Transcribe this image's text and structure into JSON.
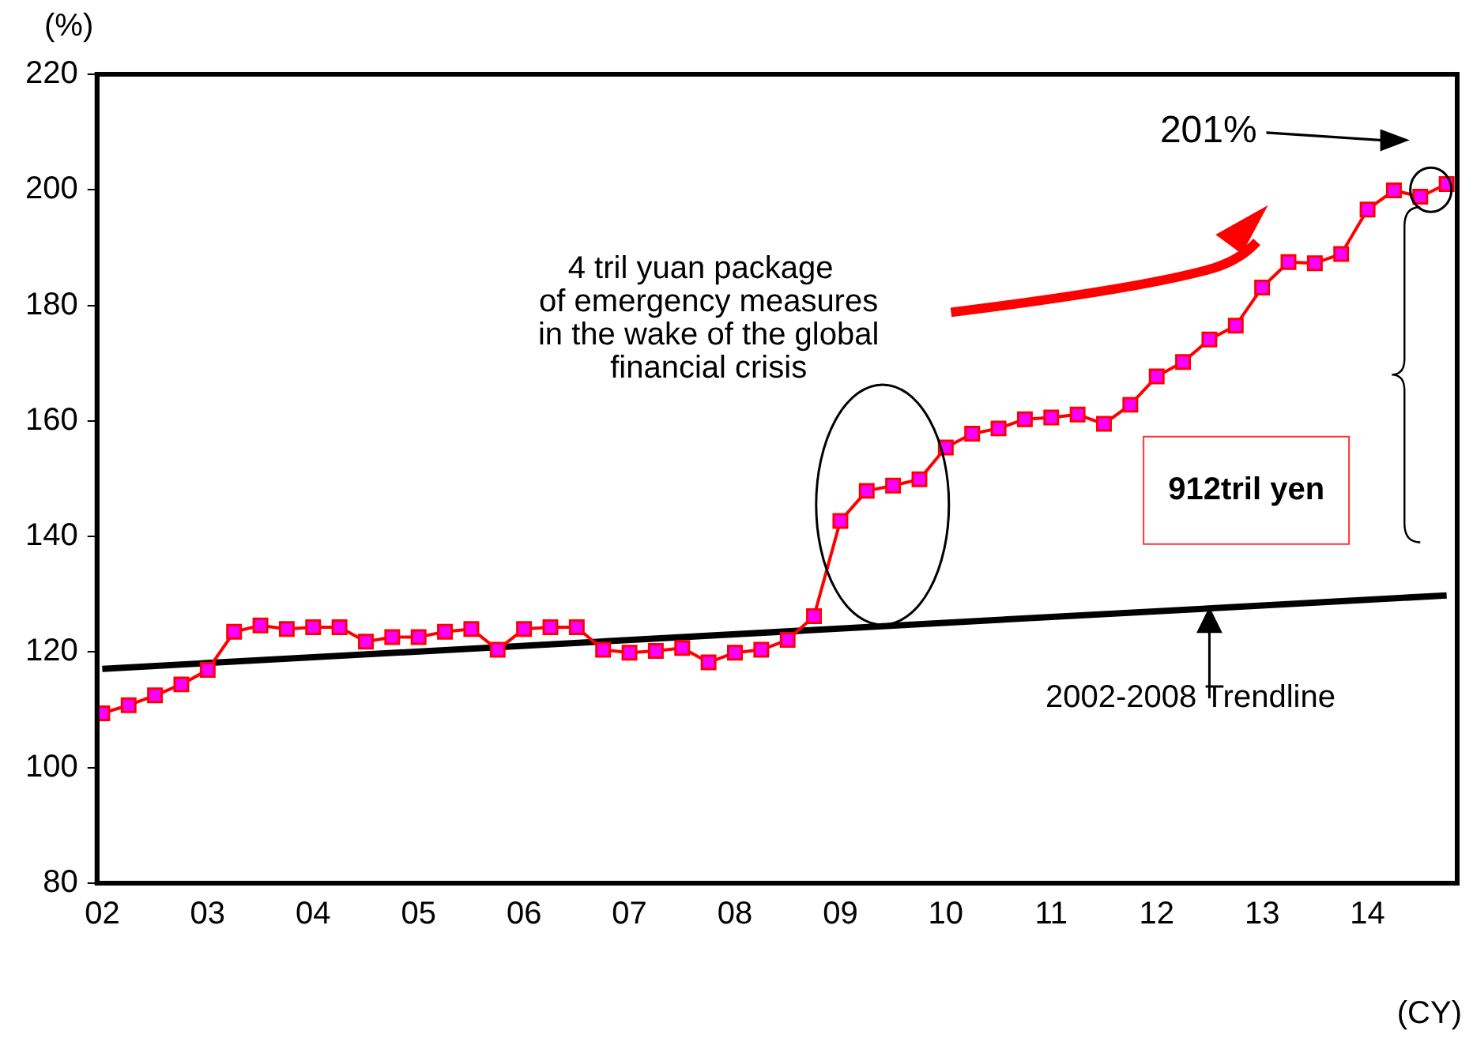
{
  "chart_data": {
    "type": "line",
    "xlabel": "(CY)",
    "ylabel": "(%)",
    "xlim": [
      2001.95,
      2014.85
    ],
    "xticks": [
      {
        "value": 2002,
        "label": "02"
      },
      {
        "value": 2003,
        "label": "03"
      },
      {
        "value": 2004,
        "label": "04"
      },
      {
        "value": 2005,
        "label": "05"
      },
      {
        "value": 2006,
        "label": "06"
      },
      {
        "value": 2007,
        "label": "07"
      },
      {
        "value": 2008,
        "label": "08"
      },
      {
        "value": 2009,
        "label": "09"
      },
      {
        "value": 2010,
        "label": "10"
      },
      {
        "value": 2011,
        "label": "11"
      },
      {
        "value": 2012,
        "label": "12"
      },
      {
        "value": 2013,
        "label": "13"
      },
      {
        "value": 2014,
        "label": "14"
      }
    ],
    "ylim": [
      80,
      220
    ],
    "yticks": [
      80,
      100,
      120,
      140,
      160,
      180,
      200,
      220
    ],
    "grid": false,
    "legend": false,
    "series": [
      {
        "color": "#ff0000",
        "marker": "square",
        "x": [
          2002,
          2002.25,
          2002.5,
          2002.75,
          2003,
          2003.25,
          2003.5,
          2003.75,
          2004,
          2004.25,
          2004.5,
          2004.75,
          2005,
          2005.25,
          2005.5,
          2005.75,
          2006,
          2006.25,
          2006.5,
          2006.75,
          2007,
          2007.25,
          2007.5,
          2007.75,
          2008,
          2008.25,
          2008.5,
          2008.75,
          2009,
          2009.25,
          2009.5,
          2009.75,
          2010,
          2010.25,
          2010.5,
          2010.75,
          2011,
          2011.25,
          2011.5,
          2011.75,
          2012,
          2012.25,
          2012.5,
          2012.75,
          2013,
          2013.25,
          2013.5,
          2013.75,
          2014,
          2014.25,
          2014.5,
          2014.75
        ],
        "values": [
          109.4,
          110.8,
          112.5,
          114.4,
          116.9,
          123.5,
          124.6,
          124.0,
          124.3,
          124.3,
          121.8,
          122.6,
          122.6,
          123.5,
          124.0,
          120.4,
          124.0,
          124.3,
          124.3,
          120.4,
          119.9,
          120.2,
          120.7,
          118.2,
          119.9,
          120.4,
          122.1,
          126.2,
          142.7,
          147.9,
          148.8,
          149.9,
          155.4,
          157.8,
          158.7,
          160.3,
          160.6,
          161.1,
          159.5,
          162.8,
          167.7,
          170.2,
          174.1,
          176.5,
          183.1,
          187.5,
          187.3,
          188.9,
          196.6,
          199.9,
          198.8,
          201
        ]
      },
      {
        "type": "line",
        "color": "#000000",
        "marker": "none",
        "x": [
          2002,
          2014.75
        ],
        "values": [
          117.1,
          129.8
        ]
      }
    ],
    "annotations": [
      "4 tril yuan package\nof emergency measures\nin the wake of the global\nfinancial crisis",
      "201%",
      "912tril yen",
      "2002-2008 Trendline"
    ]
  }
}
